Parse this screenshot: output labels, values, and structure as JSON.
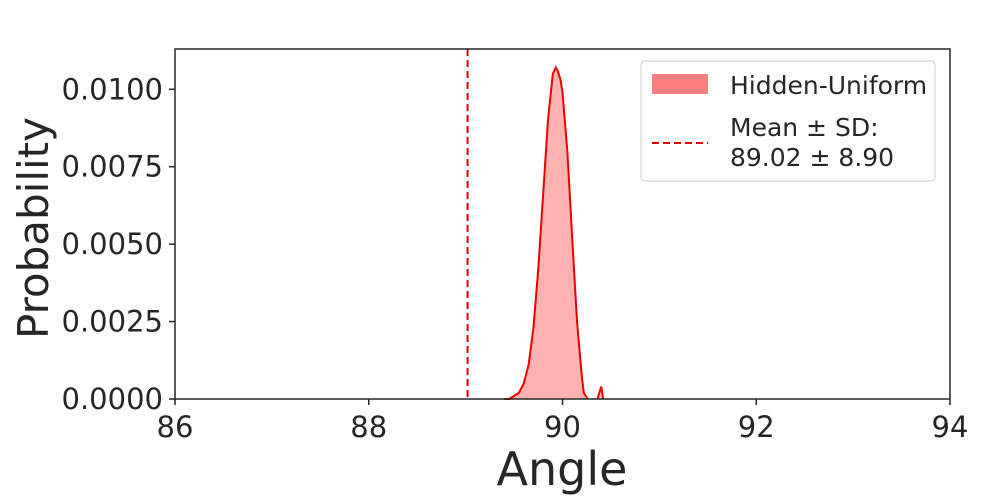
{
  "chart_data": {
    "type": "area",
    "title": "",
    "xlabel": "Angle",
    "ylabel": "Probability",
    "xlim": [
      86,
      94
    ],
    "ylim": [
      0,
      0.0113
    ],
    "x_ticks": [
      86,
      88,
      90,
      92,
      94
    ],
    "x_tick_labels": [
      "86",
      "88",
      "90",
      "92",
      "94"
    ],
    "y_ticks": [
      0,
      0.0025,
      0.005,
      0.0075,
      0.01
    ],
    "y_tick_labels": [
      "0.0000",
      "0.0025",
      "0.0050",
      "0.0075",
      "0.0100"
    ],
    "grid": false,
    "legend_position": "top-right",
    "series": [
      {
        "name": "Hidden-Uniform",
        "fill_color": "#ff7f7f",
        "line_color": "#ee0000",
        "x": [
          89.4,
          89.45,
          89.5,
          89.55,
          89.6,
          89.65,
          89.7,
          89.75,
          89.8,
          89.85,
          89.9,
          89.93,
          89.95,
          89.98,
          90.0,
          90.05,
          90.1,
          90.15,
          90.2,
          90.22,
          90.26
        ],
        "y": [
          0.0,
          0.0,
          0.0001,
          0.0002,
          0.0005,
          0.0011,
          0.0023,
          0.0042,
          0.0066,
          0.009,
          0.0105,
          0.0107,
          0.0106,
          0.0103,
          0.0099,
          0.008,
          0.0052,
          0.0025,
          0.0007,
          0.0002,
          0.0
        ]
      },
      {
        "name": "",
        "fill_color": "#ff7f7f",
        "line_color": "#ee0000",
        "x": [
          90.36,
          90.38,
          90.4,
          90.42
        ],
        "y": [
          0.0,
          0.0002,
          0.0004,
          0.0
        ]
      }
    ],
    "reference_lines": [
      {
        "orientation": "vertical",
        "x": 89.02,
        "style": "dashed",
        "color": "#dd0000",
        "legend_label_line1": "Mean ± SD:",
        "legend_label_line2": "89.02 ± 8.90"
      }
    ]
  }
}
